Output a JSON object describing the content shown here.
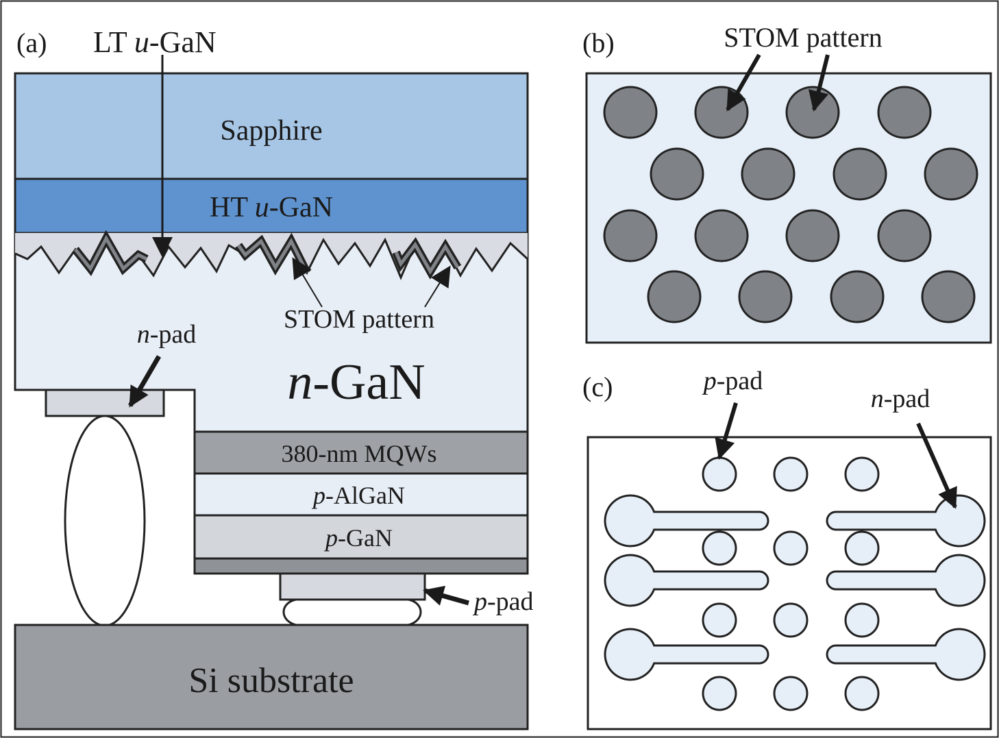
{
  "panel_a": {
    "label": "(a)",
    "lt_ugan_prefix": "LT ",
    "lt_ugan_italic": "u",
    "lt_ugan_suffix": "-GaN",
    "sapphire": "Sapphire",
    "ht_ugan_prefix": "HT ",
    "ht_ugan_italic": "u",
    "ht_ugan_suffix": "-GaN",
    "stom": "STOM pattern",
    "npad_italic": "n",
    "npad_suffix": "-pad",
    "ngan_italic": "n",
    "ngan_suffix": "-GaN",
    "mqw": "380-nm MQWs",
    "palgan_italic": "p",
    "palgan_suffix": "-AlGaN",
    "pgan_italic": "p",
    "pgan_suffix": "-GaN",
    "ppad_italic": "p",
    "ppad_suffix": "-pad",
    "si": "Si substrate"
  },
  "panel_b": {
    "label": "(b)",
    "stom": "STOM pattern"
  },
  "panel_c": {
    "label": "(c)",
    "ppad_italic": "p",
    "ppad_suffix": "-pad",
    "npad_italic": "n",
    "npad_suffix": "-pad"
  },
  "colors": {
    "sapphire": "#a7c6e6",
    "ht_ugan": "#5f93cf",
    "ngan": "#e8eef6",
    "lt_layer": "#d9dde3",
    "mqw": "#9ea2a6",
    "palgan": "#e8eef6",
    "pgan": "#d3d7dc",
    "contact": "#8f9397",
    "si": "#9a9ea3",
    "pad": "#d6dae0",
    "panel_bg": "#e6eef7",
    "stom_dot": "#7f8387"
  }
}
